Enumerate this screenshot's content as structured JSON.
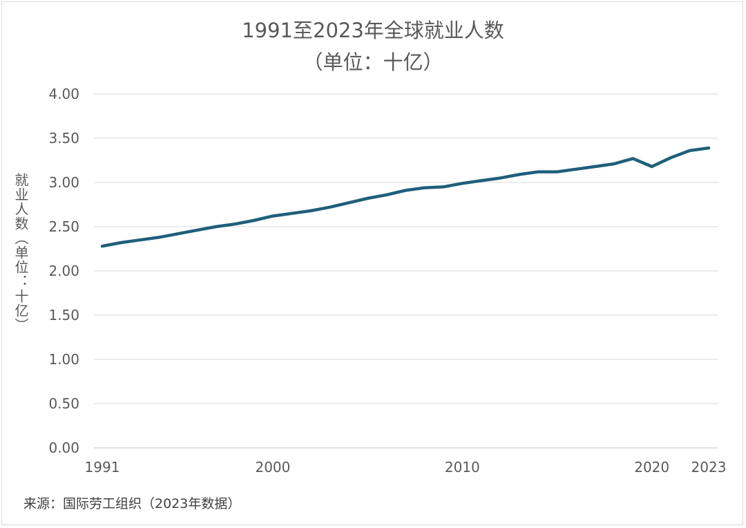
{
  "title_line1": "1991至2023年全球就业人数",
  "title_line2": "（单位：十亿）",
  "ylabel": "就业人数（单位：十亿）",
  "source": "来源：国际劳工组织（2023年数据）",
  "colors": {
    "line": "#1f5f7a",
    "grid": "#d9d9d9",
    "text": "#595959"
  },
  "chart_data": {
    "type": "line",
    "title": "1991至2023年全球就业人数（单位：十亿）",
    "xlabel": "",
    "ylabel": "就业人数（单位：十亿）",
    "ylim": [
      0,
      4
    ],
    "xlim": [
      1991,
      2023
    ],
    "y_ticks": [
      "0.00",
      "0.50",
      "1.00",
      "1.50",
      "2.00",
      "2.50",
      "3.00",
      "3.50",
      "4.00"
    ],
    "x_ticks": [
      "1991",
      "2000",
      "2010",
      "2020",
      "2023"
    ],
    "grid": true,
    "legend": "none",
    "x": [
      1991,
      1992,
      1993,
      1994,
      1995,
      1996,
      1997,
      1998,
      1999,
      2000,
      2001,
      2002,
      2003,
      2004,
      2005,
      2006,
      2007,
      2008,
      2009,
      2010,
      2011,
      2012,
      2013,
      2014,
      2015,
      2016,
      2017,
      2018,
      2019,
      2020,
      2021,
      2022,
      2023
    ],
    "series": [
      {
        "values": [
          2.28,
          2.32,
          2.35,
          2.38,
          2.42,
          2.46,
          2.5,
          2.53,
          2.57,
          2.62,
          2.65,
          2.68,
          2.72,
          2.77,
          2.82,
          2.86,
          2.91,
          2.94,
          2.95,
          2.99,
          3.02,
          3.05,
          3.09,
          3.12,
          3.12,
          3.15,
          3.18,
          3.21,
          3.27,
          3.18,
          3.28,
          3.36,
          3.39
        ]
      }
    ]
  }
}
